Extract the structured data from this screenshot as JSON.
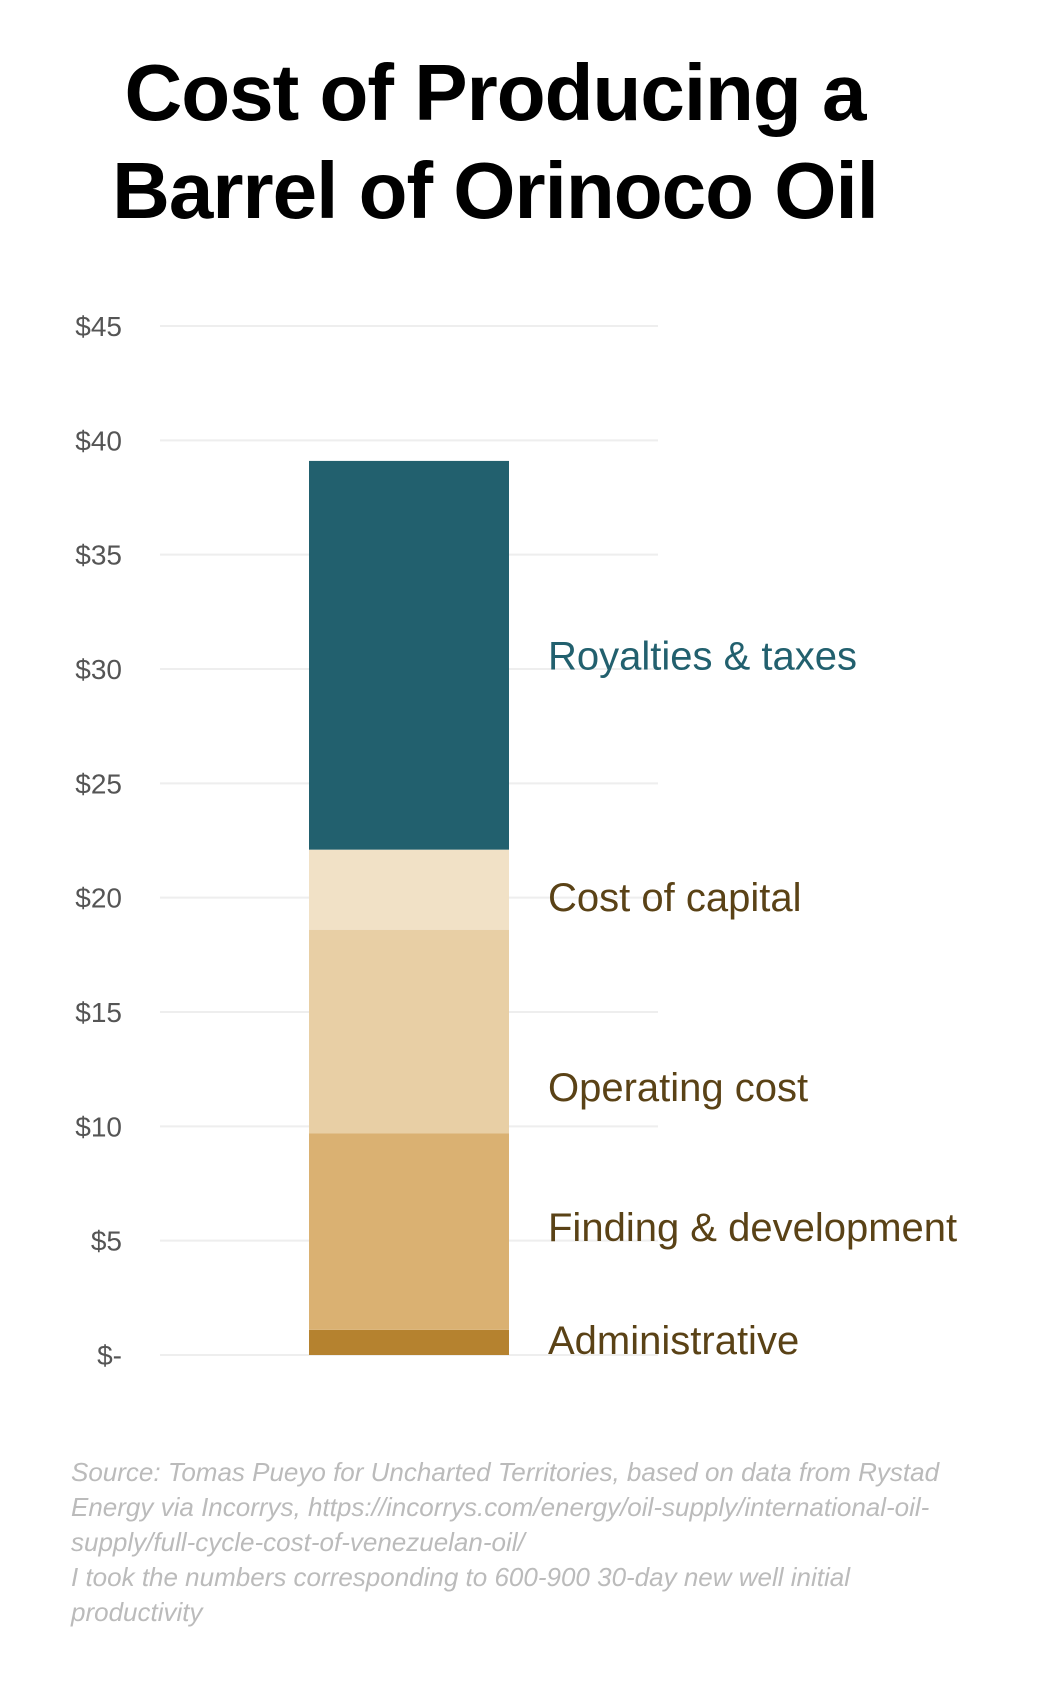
{
  "title_lines": [
    "Cost of Producing a",
    "Barrel of Orinoco Oil"
  ],
  "chart_data": {
    "type": "bar",
    "stacked": true,
    "categories": [
      ""
    ],
    "series": [
      {
        "name": "Administrative",
        "values": [
          1.1
        ],
        "color": "#b5822f",
        "label_color": "#5a4216"
      },
      {
        "name": "Finding & development",
        "values": [
          8.6
        ],
        "color": "#dab172",
        "label_color": "#5a4216"
      },
      {
        "name": "Operating cost",
        "values": [
          8.9
        ],
        "color": "#e8cfa5",
        "label_color": "#5a4216"
      },
      {
        "name": "Cost of capital",
        "values": [
          3.5
        ],
        "color": "#f1e1c6",
        "label_color": "#5a4216"
      },
      {
        "name": "Royalties & taxes",
        "values": [
          17.0
        ],
        "color": "#22606e",
        "label_color": "#22606e"
      }
    ],
    "ylim": [
      0,
      45
    ],
    "yticks": [
      0,
      5,
      10,
      15,
      20,
      25,
      30,
      35,
      40,
      45
    ],
    "ytick_labels": [
      "$-",
      "$5",
      "$10",
      "$15",
      "$20",
      "$25",
      "$30",
      "$35",
      "$40",
      "$45"
    ],
    "grid": true,
    "legend": "direct-labels-right",
    "gridline_color": "#eeeeee",
    "tick_color": "#555555"
  },
  "source_lines": [
    "Source: Tomas Pueyo for Uncharted Territories, based on data from Rystad",
    "Energy via Incorrys, https://incorrys.com/energy/oil-supply/international-oil-",
    "supply/full-cycle-cost-of-venezuelan-oil/",
    "I took the numbers corresponding to 600-900 30-day new well initial",
    "productivity"
  ]
}
